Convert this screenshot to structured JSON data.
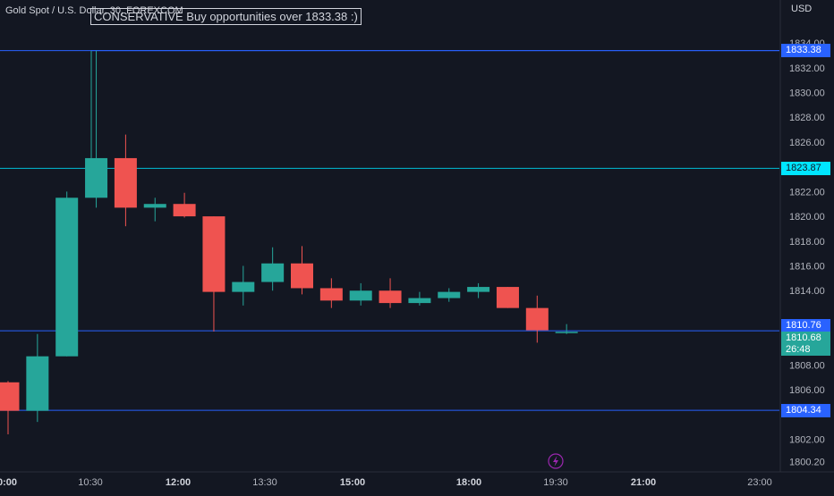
{
  "symbol_title": "Gold Spot / U.S. Dollar, 30, FOREXCOM",
  "annotation_text": "CONSERVATIVE  Buy opportunities over 1833.38 :)",
  "currency_label": "USD",
  "colors": {
    "background": "#131722",
    "up": "#26a69a",
    "down": "#ef5350",
    "level_line": "#2962ff",
    "cyan_line": "#00bcd4",
    "text": "#d1d4dc"
  },
  "price_tags": [
    {
      "label": "1833.38",
      "price": 1833.38,
      "bg": "#2962ff"
    },
    {
      "label": "1823.87",
      "price": 1823.87,
      "bg": "#00e5ff",
      "text_color": "#131722"
    },
    {
      "label": "1810.76",
      "price": 1810.76,
      "bg": "#2962ff"
    },
    {
      "label": "1810.68",
      "price": 1810.68,
      "bg": "#26a69a"
    },
    {
      "label": "1804.34",
      "price": 1804.34,
      "bg": "#2962ff"
    }
  ],
  "countdown": "26:48",
  "lightning_icon": "lightning-icon",
  "chart_data": {
    "type": "candlestick",
    "y_range": [
      1799,
      1835
    ],
    "y_ticks": [
      "1834.00",
      "1832.00",
      "1830.00",
      "1828.00",
      "1826.00",
      "1822.00",
      "1820.00",
      "1818.00",
      "1816.00",
      "1814.00",
      "1808.00",
      "1806.00",
      "1802.00",
      "1800.20"
    ],
    "x_ticks": [
      "0:00",
      "10:30",
      "12:00",
      "13:30",
      "15:00",
      "18:00",
      "19:30",
      "21:00",
      "23:00"
    ],
    "horizontal_levels": [
      {
        "price": 1833.38,
        "color": "#2962ff"
      },
      {
        "price": 1823.87,
        "color": "#00bcd4"
      },
      {
        "price": 1810.76,
        "color": "#2962ff"
      },
      {
        "price": 1804.34,
        "color": "#2962ff"
      }
    ],
    "candles": [
      {
        "o": 1806.6,
        "h": 1806.7,
        "l": 1802.4,
        "c": 1804.3
      },
      {
        "o": 1804.3,
        "h": 1810.5,
        "l": 1803.4,
        "c": 1808.7
      },
      {
        "o": 1808.7,
        "h": 1822.0,
        "l": 1808.7,
        "c": 1821.5
      },
      {
        "o": 1821.5,
        "h": 1833.38,
        "l": 1820.7,
        "c": 1824.7
      },
      {
        "o": 1824.7,
        "h": 1826.6,
        "l": 1819.2,
        "c": 1820.7
      },
      {
        "o": 1820.7,
        "h": 1821.5,
        "l": 1819.6,
        "c": 1821.0
      },
      {
        "o": 1821.0,
        "h": 1821.9,
        "l": 1819.9,
        "c": 1820.0
      },
      {
        "o": 1820.0,
        "h": 1820.0,
        "l": 1810.7,
        "c": 1813.9
      },
      {
        "o": 1813.9,
        "h": 1816.0,
        "l": 1812.8,
        "c": 1814.7
      },
      {
        "o": 1814.7,
        "h": 1817.5,
        "l": 1814.0,
        "c": 1816.2
      },
      {
        "o": 1816.2,
        "h": 1817.6,
        "l": 1813.7,
        "c": 1814.2
      },
      {
        "o": 1814.2,
        "h": 1815.0,
        "l": 1812.6,
        "c": 1813.2
      },
      {
        "o": 1813.2,
        "h": 1814.6,
        "l": 1812.8,
        "c": 1814.0
      },
      {
        "o": 1814.0,
        "h": 1815.0,
        "l": 1812.6,
        "c": 1813.0
      },
      {
        "o": 1813.0,
        "h": 1813.9,
        "l": 1812.8,
        "c": 1813.4
      },
      {
        "o": 1813.4,
        "h": 1814.2,
        "l": 1813.1,
        "c": 1813.9
      },
      {
        "o": 1813.9,
        "h": 1814.6,
        "l": 1813.4,
        "c": 1814.3
      },
      {
        "o": 1814.3,
        "h": 1814.3,
        "l": 1812.6,
        "c": 1812.6
      },
      {
        "o": 1812.6,
        "h": 1813.6,
        "l": 1809.8,
        "c": 1810.8
      },
      {
        "o": 1810.6,
        "h": 1811.3,
        "l": 1810.5,
        "c": 1810.68
      }
    ]
  }
}
